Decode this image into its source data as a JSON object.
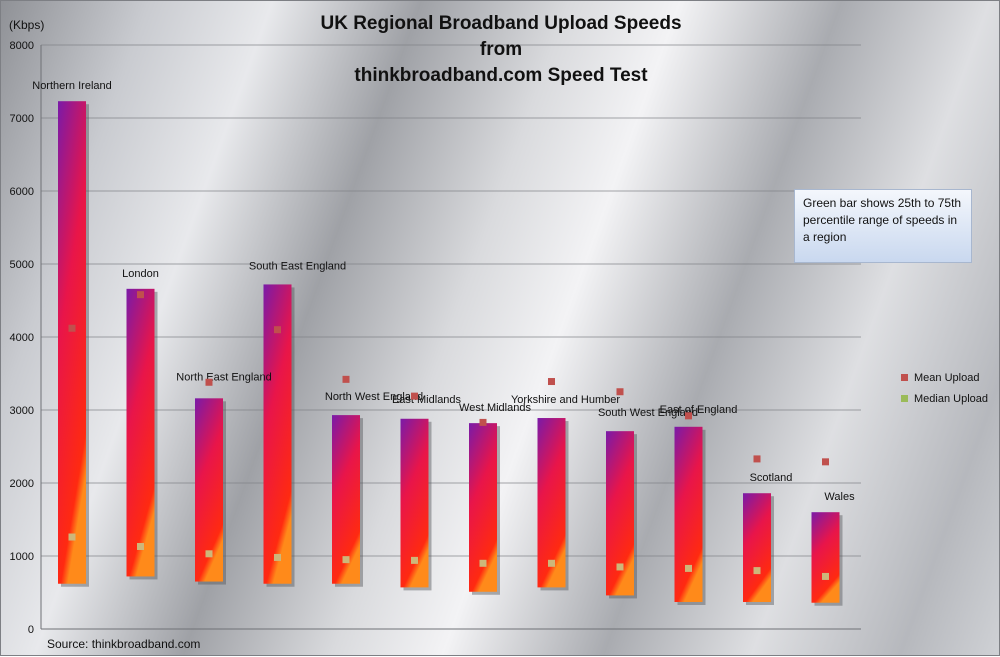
{
  "title_lines": [
    "UK Regional Broadband Upload Speeds",
    "from",
    "thinkbroadband.com Speed Test"
  ],
  "unit_label": "(Kbps)",
  "info_text": "Green bar shows 25th to 75th percentile range of speeds in a region",
  "source": "Source: thinkbroadband.com",
  "legend": [
    {
      "label": "Mean Upload",
      "color": "#c0504d"
    },
    {
      "label": "Median Upload",
      "color": "#9bbb59"
    }
  ],
  "colors": {
    "bar_top": "#7a1aa8",
    "bar_mid": "#e8154a",
    "bar_bottom": "#ff2a10",
    "mean_marker": "#c0504d",
    "median_marker": "#cdb77a"
  },
  "chart_data": {
    "type": "bar",
    "title": "UK Regional Broadband Upload Speeds from thinkbroadband.com Speed Test",
    "ylabel": "(Kbps)",
    "ylim": [
      0,
      8000
    ],
    "yticks": [
      0,
      1000,
      2000,
      3000,
      4000,
      5000,
      6000,
      7000,
      8000
    ],
    "grid": true,
    "legend_position": "right",
    "categories": [
      "Northern Ireland",
      "London",
      "North East England",
      "South East England",
      "North West England",
      "East Midlands",
      "West Midlands",
      "Yorkshire and Humber",
      "South West England",
      "East of England",
      "Scotland",
      "Wales"
    ],
    "range_low": [
      620,
      720,
      650,
      620,
      620,
      570,
      510,
      570,
      460,
      370,
      370,
      360
    ],
    "range_high": [
      7230,
      4660,
      3160,
      4720,
      2930,
      2880,
      2820,
      2890,
      2710,
      2770,
      1860,
      1600
    ],
    "series": [
      {
        "name": "Mean Upload",
        "values": [
          4120,
          4580,
          3380,
          4100,
          3420,
          3190,
          2830,
          3390,
          3250,
          2920,
          2330,
          2290
        ]
      },
      {
        "name": "Median Upload",
        "values": [
          1260,
          1130,
          1030,
          980,
          950,
          940,
          900,
          900,
          850,
          830,
          800,
          720
        ]
      }
    ]
  }
}
